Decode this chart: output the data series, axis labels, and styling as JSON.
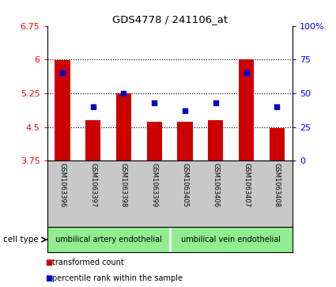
{
  "title": "GDS4778 / 241106_at",
  "samples": [
    "GSM1063396",
    "GSM1063397",
    "GSM1063398",
    "GSM1063399",
    "GSM1063405",
    "GSM1063406",
    "GSM1063407",
    "GSM1063408"
  ],
  "red_values": [
    5.98,
    4.65,
    5.25,
    4.62,
    4.61,
    4.65,
    6.01,
    4.47
  ],
  "blue_percentile": [
    65,
    40,
    50,
    43,
    37,
    43,
    65,
    40
  ],
  "ylim_left": [
    3.75,
    6.75
  ],
  "ylim_right": [
    0,
    100
  ],
  "yticks_left": [
    3.75,
    4.5,
    5.25,
    6.0,
    6.75
  ],
  "yticks_right": [
    0,
    25,
    50,
    75,
    100
  ],
  "ytick_labels_left": [
    "3.75",
    "4.5",
    "5.25",
    "6",
    "6.75"
  ],
  "ytick_labels_right": [
    "0",
    "25",
    "50",
    "75",
    "100%"
  ],
  "group1_label": "umbilical artery endothelial",
  "group2_label": "umbilical vein endothelial",
  "group_color": "#90EE90",
  "cell_type_label": "cell type",
  "legend_red": "transformed count",
  "legend_blue": "percentile rank within the sample",
  "bar_color": "#CC0000",
  "dot_color": "#0000CC",
  "bg_color": "#FFFFFF",
  "label_area_bg": "#C8C8C8",
  "bar_width": 0.5
}
